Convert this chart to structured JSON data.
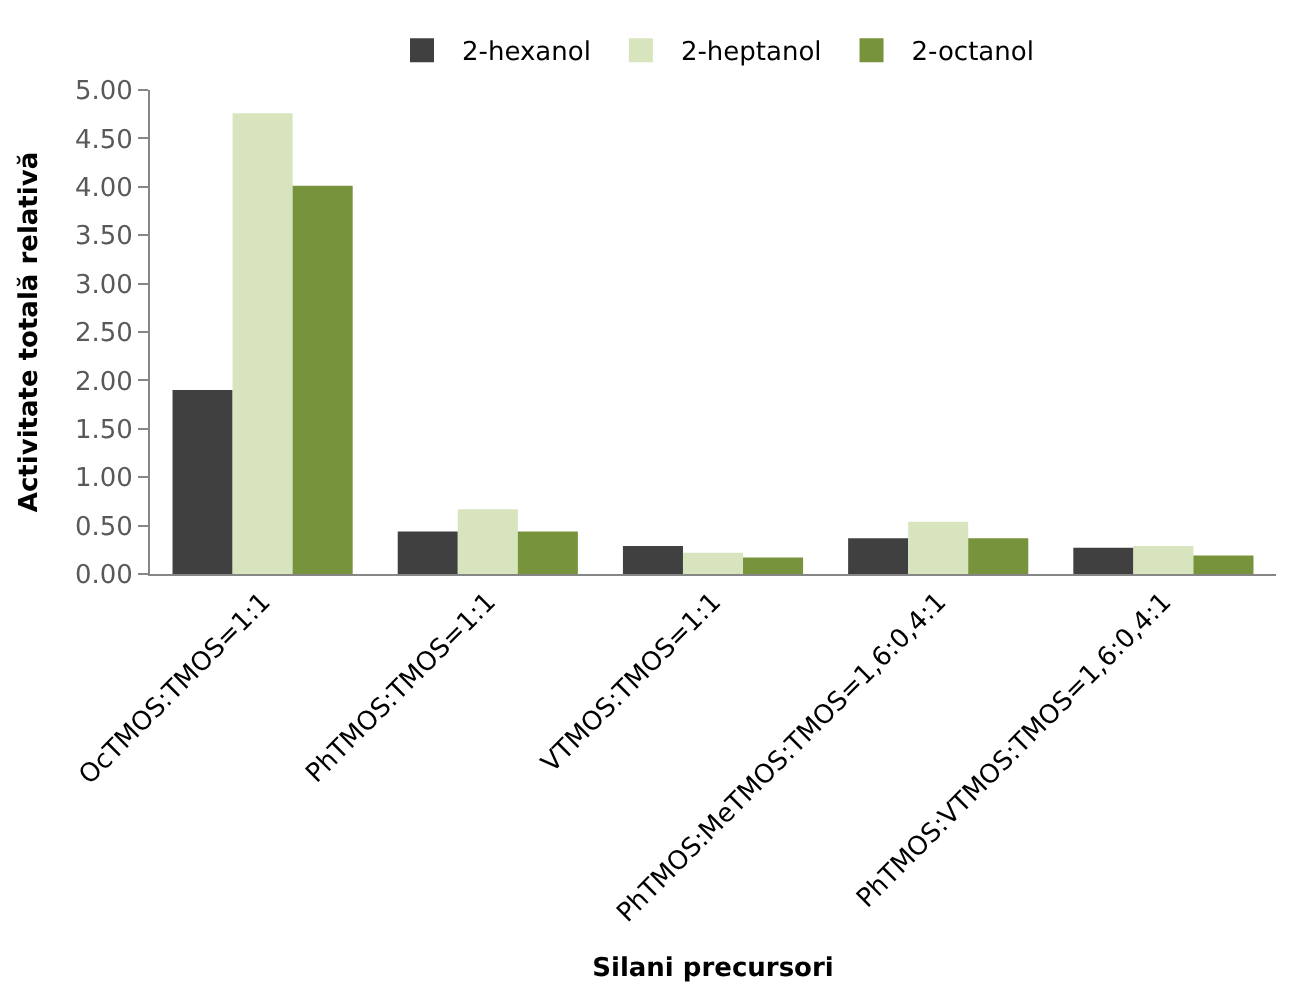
{
  "chart_data": {
    "type": "bar",
    "xlabel": "Silani precursori",
    "ylabel": "Activitate totală relativă",
    "categories": [
      "OcTMOS:TMOS=1:1",
      "PhTMOS:TMOS=1:1",
      "VTMOS:TMOS=1:1",
      "PhTMOS:MeTMOS:TMOS=1,6:0,4:1",
      "PhTMOS:VTMOS:TMOS=1,6:0,4:1"
    ],
    "series": [
      {
        "name": "2-hexanol",
        "color": "#404040",
        "values": [
          1.9,
          0.44,
          0.29,
          0.37,
          0.27
        ]
      },
      {
        "name": "2-heptanol",
        "color": "#d7e4bd",
        "values": [
          4.76,
          0.67,
          0.22,
          0.54,
          0.29
        ]
      },
      {
        "name": "2-octanol",
        "color": "#77933c",
        "values": [
          4.01,
          0.44,
          0.17,
          0.37,
          0.19
        ]
      }
    ],
    "ylim": [
      0,
      5
    ],
    "yticks": [
      {
        "value": 0,
        "label": "0.00"
      },
      {
        "value": 0.5,
        "label": "0.50"
      },
      {
        "value": 1,
        "label": "1.00"
      },
      {
        "value": 1.5,
        "label": "1.50"
      },
      {
        "value": 2,
        "label": "2.00"
      },
      {
        "value": 2.5,
        "label": "2.50"
      },
      {
        "value": 3,
        "label": "3.00"
      },
      {
        "value": 3.5,
        "label": "3.50"
      },
      {
        "value": 4,
        "label": "4.00"
      },
      {
        "value": 4.5,
        "label": "4.50"
      },
      {
        "value": 5,
        "label": "5.00"
      }
    ],
    "legend": "top"
  }
}
